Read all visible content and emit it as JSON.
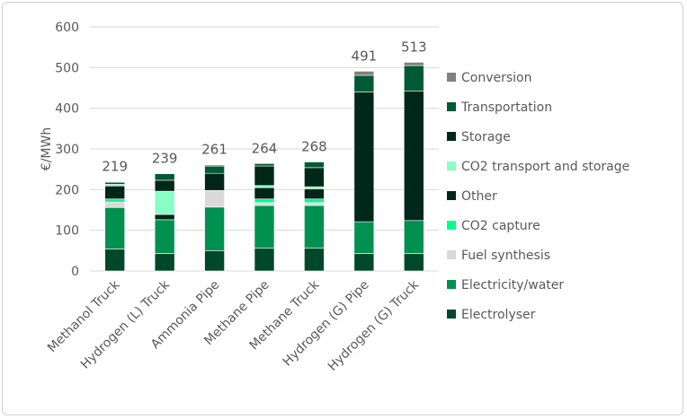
{
  "chart_data": {
    "type": "bar",
    "stacked": true,
    "title": "",
    "xlabel": "",
    "ylabel": "€/MWh",
    "ylim": [
      0,
      600
    ],
    "yticks": [
      0,
      100,
      200,
      300,
      400,
      500,
      600
    ],
    "grid": true,
    "legend_position": "right",
    "categories": [
      "Methanol Truck",
      "Hydrogen (L) Truck",
      "Ammonia Pipe",
      "Methane Pipe",
      "Methane Truck",
      "Hydrogen (G) Pipe",
      "Hydrogen (G) Truck"
    ],
    "totals": [
      219,
      239,
      261,
      264,
      268,
      491,
      513
    ],
    "series": [
      {
        "name": "Electrolyser",
        "color": "#00482a",
        "values": [
          54,
          43,
          50,
          56,
          56,
          43,
          43
        ]
      },
      {
        "name": "Electricity/water",
        "color": "#009150",
        "values": [
          102,
          83,
          107,
          105,
          105,
          78,
          81
        ]
      },
      {
        "name": "Fuel synthesis",
        "color": "#d9d9d9",
        "values": [
          13,
          0,
          41,
          7,
          7,
          0,
          0
        ]
      },
      {
        "name": "CO2 capture",
        "color": "#00ff88",
        "values": [
          8,
          0,
          0,
          9,
          9,
          0,
          0
        ]
      },
      {
        "name": "Other",
        "color": "#00261a",
        "values": [
          32,
          13,
          42,
          28,
          25,
          0,
          0
        ]
      },
      {
        "name": "CO2 transport and storage",
        "color": "#88ffc4",
        "values": [
          4,
          57,
          0,
          5,
          5,
          0,
          0
        ]
      },
      {
        "name": "Storage",
        "color": "#00281a",
        "values": [
          0,
          27,
          0,
          48,
          47,
          319,
          318
        ]
      },
      {
        "name": "Transportation",
        "color": "#005a34",
        "values": [
          5,
          16,
          18,
          6,
          14,
          41,
          63
        ]
      },
      {
        "name": "Conversion",
        "color": "#808080",
        "values": [
          1,
          0,
          3,
          0,
          0,
          10,
          8
        ]
      }
    ]
  }
}
